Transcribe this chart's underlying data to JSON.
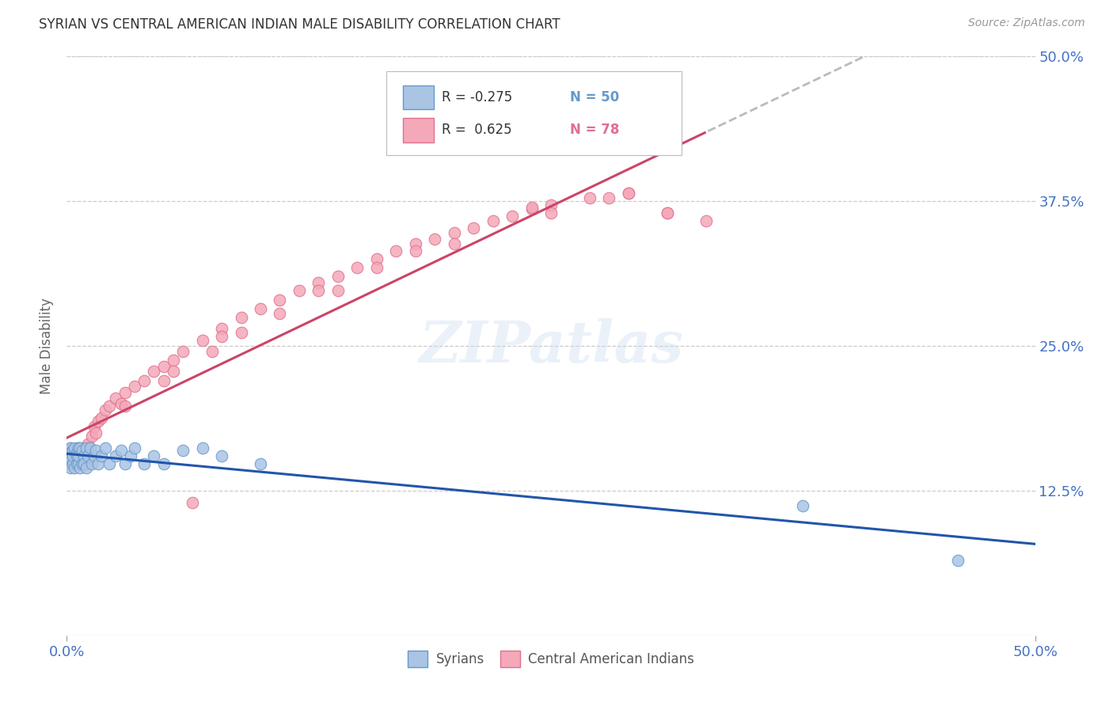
{
  "title": "SYRIAN VS CENTRAL AMERICAN INDIAN MALE DISABILITY CORRELATION CHART",
  "source": "Source: ZipAtlas.com",
  "ylabel": "Male Disability",
  "xlim": [
    0.0,
    0.5
  ],
  "ylim": [
    0.0,
    0.5
  ],
  "xtick_vals": [
    0.0,
    0.5
  ],
  "xtick_labels": [
    "0.0%",
    "50.0%"
  ],
  "ytick_vals": [
    0.125,
    0.25,
    0.375,
    0.5
  ],
  "ytick_labels": [
    "12.5%",
    "25.0%",
    "37.5%",
    "50.0%"
  ],
  "color_syrians": "#aac4e4",
  "color_central": "#f4a8b8",
  "edge_color_syrians": "#6699cc",
  "edge_color_central": "#e07090",
  "line_color_syrians": "#2255aa",
  "line_color_central": "#cc4466",
  "watermark": "ZIPatlas",
  "background_color": "#ffffff",
  "syrians_x": [
    0.0,
    0.001,
    0.001,
    0.001,
    0.002,
    0.002,
    0.002,
    0.002,
    0.003,
    0.003,
    0.003,
    0.004,
    0.004,
    0.005,
    0.005,
    0.005,
    0.006,
    0.006,
    0.006,
    0.007,
    0.007,
    0.008,
    0.008,
    0.009,
    0.009,
    0.01,
    0.01,
    0.011,
    0.012,
    0.013,
    0.014,
    0.015,
    0.016,
    0.018,
    0.02,
    0.022,
    0.025,
    0.028,
    0.03,
    0.033,
    0.035,
    0.04,
    0.045,
    0.05,
    0.06,
    0.07,
    0.08,
    0.1,
    0.38,
    0.46
  ],
  "syrians_y": [
    0.15,
    0.16,
    0.148,
    0.155,
    0.162,
    0.145,
    0.158,
    0.153,
    0.16,
    0.148,
    0.155,
    0.162,
    0.145,
    0.158,
    0.148,
    0.155,
    0.162,
    0.148,
    0.155,
    0.145,
    0.162,
    0.148,
    0.16,
    0.155,
    0.148,
    0.162,
    0.145,
    0.155,
    0.162,
    0.148,
    0.155,
    0.16,
    0.148,
    0.155,
    0.162,
    0.148,
    0.155,
    0.16,
    0.148,
    0.155,
    0.162,
    0.148,
    0.155,
    0.148,
    0.16,
    0.162,
    0.155,
    0.148,
    0.112,
    0.065
  ],
  "central_x": [
    0.0,
    0.001,
    0.001,
    0.002,
    0.002,
    0.003,
    0.003,
    0.004,
    0.004,
    0.005,
    0.005,
    0.006,
    0.006,
    0.007,
    0.008,
    0.008,
    0.009,
    0.01,
    0.01,
    0.011,
    0.012,
    0.013,
    0.014,
    0.015,
    0.016,
    0.018,
    0.02,
    0.022,
    0.025,
    0.028,
    0.03,
    0.035,
    0.04,
    0.045,
    0.05,
    0.055,
    0.06,
    0.07,
    0.08,
    0.09,
    0.1,
    0.11,
    0.12,
    0.13,
    0.14,
    0.15,
    0.16,
    0.17,
    0.18,
    0.19,
    0.2,
    0.21,
    0.22,
    0.23,
    0.24,
    0.25,
    0.27,
    0.29,
    0.31,
    0.33,
    0.03,
    0.055,
    0.075,
    0.14,
    0.2,
    0.25,
    0.28,
    0.31,
    0.18,
    0.065,
    0.11,
    0.13,
    0.09,
    0.16,
    0.24,
    0.29,
    0.05,
    0.08
  ],
  "central_y": [
    0.15,
    0.148,
    0.158,
    0.155,
    0.162,
    0.155,
    0.148,
    0.16,
    0.148,
    0.158,
    0.155,
    0.162,
    0.148,
    0.155,
    0.162,
    0.148,
    0.155,
    0.162,
    0.148,
    0.165,
    0.158,
    0.172,
    0.18,
    0.175,
    0.185,
    0.188,
    0.195,
    0.198,
    0.205,
    0.2,
    0.21,
    0.215,
    0.22,
    0.228,
    0.232,
    0.238,
    0.245,
    0.255,
    0.265,
    0.275,
    0.282,
    0.29,
    0.298,
    0.305,
    0.31,
    0.318,
    0.325,
    0.332,
    0.338,
    0.342,
    0.348,
    0.352,
    0.358,
    0.362,
    0.368,
    0.372,
    0.378,
    0.382,
    0.365,
    0.358,
    0.198,
    0.228,
    0.245,
    0.298,
    0.338,
    0.365,
    0.378,
    0.365,
    0.332,
    0.115,
    0.278,
    0.298,
    0.262,
    0.318,
    0.37,
    0.382,
    0.22,
    0.258
  ],
  "syrians_trend_x": [
    0.0,
    0.5
  ],
  "central_trend_x_solid_end": 0.33,
  "central_trend_dashed_color": "#bbbbbb"
}
